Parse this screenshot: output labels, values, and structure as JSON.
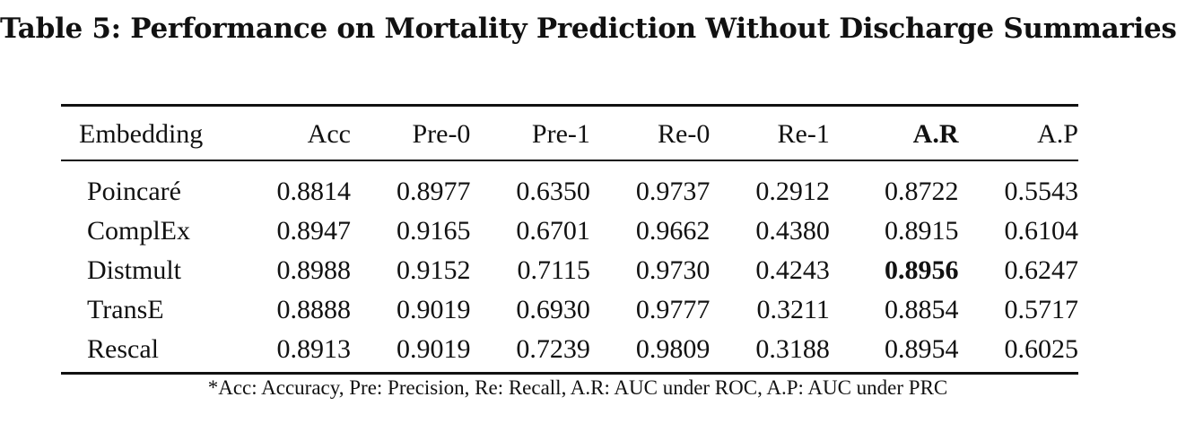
{
  "caption": "Table 5: Performance on Mortality Prediction Without Discharge Summaries",
  "table": {
    "headers": [
      "Embedding",
      "Acc",
      "Pre-0",
      "Pre-1",
      "Re-0",
      "Re-1",
      "A.R",
      "A.P"
    ],
    "rows": [
      [
        "Poincaré",
        "0.8814",
        "0.8977",
        "0.6350",
        "0.9737",
        "0.2912",
        "0.8722",
        "0.5543"
      ],
      [
        "ComplEx",
        "0.8947",
        "0.9165",
        "0.6701",
        "0.9662",
        "0.4380",
        "0.8915",
        "0.6104"
      ],
      [
        "Distmult",
        "0.8988",
        "0.9152",
        "0.7115",
        "0.9730",
        "0.4243",
        "0.8956",
        "0.6247"
      ],
      [
        "TransE",
        "0.8888",
        "0.9019",
        "0.6930",
        "0.9777",
        "0.3211",
        "0.8854",
        "0.5717"
      ],
      [
        "Rescal",
        "0.8913",
        "0.9019",
        "0.7239",
        "0.9809",
        "0.3188",
        "0.8954",
        "0.6025"
      ]
    ]
  },
  "footnote": "*Acc: Accuracy, Pre: Precision, Re: Recall, A.R: AUC under ROC, A.P: AUC under PRC"
}
